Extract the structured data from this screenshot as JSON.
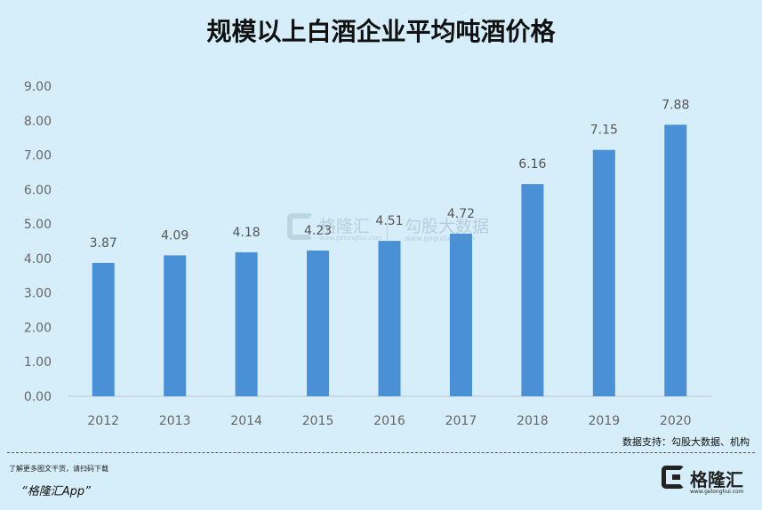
{
  "title": "规模以上白酒企业平均吨酒价格",
  "chart_data": {
    "type": "bar",
    "title": "规模以上白酒企业平均吨酒价格",
    "xlabel": "",
    "ylabel": "",
    "categories": [
      "2012",
      "2013",
      "2014",
      "2015",
      "2016",
      "2017",
      "2018",
      "2019",
      "2020"
    ],
    "values": [
      3.87,
      4.09,
      4.18,
      4.23,
      4.51,
      4.72,
      6.16,
      7.15,
      7.88
    ],
    "ylim": [
      0,
      9
    ],
    "yticks": [
      "0.00",
      "1.00",
      "2.00",
      "3.00",
      "4.00",
      "5.00",
      "6.00",
      "7.00",
      "8.00",
      "9.00"
    ],
    "bar_color": "#4a90d6",
    "grid": false,
    "data_labels": true
  },
  "watermark": {
    "brand": "格隆汇",
    "brand_url": "www.gelonghui.com",
    "partner": "勾股大数据",
    "partner_url": "www.gogudata.com"
  },
  "source": "数据支持：勾股大数据、机构",
  "footer": {
    "note": "了解更多图文干货，请扫码下载",
    "app": "“格隆汇App”",
    "logo_name": "格隆汇",
    "logo_url": "www.gelonghui.com"
  },
  "colors": {
    "background": "#d6eef9",
    "bar": "#4a90d6",
    "text": "#111111"
  }
}
